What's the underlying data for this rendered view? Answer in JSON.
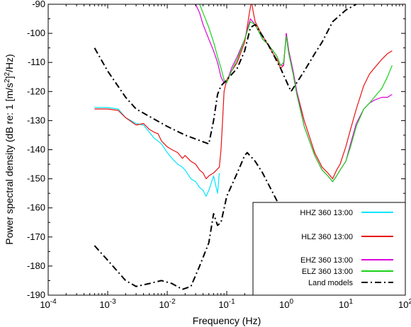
{
  "chart_data": {
    "type": "line",
    "title": "",
    "xlabel": "Frequency (Hz)",
    "ylabel_parts": {
      "prefix": "Power spectral density (dB re: 1 [m/s",
      "sup": "2",
      "mid": "]",
      "sup2": "2",
      "suffix": "/Hz)"
    },
    "xscale": "log",
    "xlim": [
      0.0001,
      100
    ],
    "ylim": [
      -190,
      -90
    ],
    "x_ticks": [
      {
        "value": 0.0001,
        "base": "10",
        "exp": "-4"
      },
      {
        "value": 0.001,
        "base": "10",
        "exp": "-3"
      },
      {
        "value": 0.01,
        "base": "10",
        "exp": "-2"
      },
      {
        "value": 0.1,
        "base": "10",
        "exp": "-1"
      },
      {
        "value": 1,
        "base": "10",
        "exp": "0"
      },
      {
        "value": 10,
        "base": "10",
        "exp": "1"
      },
      {
        "value": 100,
        "base": "10",
        "exp": "2"
      }
    ],
    "y_ticks": [
      {
        "value": -90,
        "label": "-90"
      },
      {
        "value": -100,
        "label": "-100"
      },
      {
        "value": -110,
        "label": "-110"
      },
      {
        "value": -120,
        "label": "-120"
      },
      {
        "value": -130,
        "label": "-130"
      },
      {
        "value": -140,
        "label": "-140"
      },
      {
        "value": -150,
        "label": "-150"
      },
      {
        "value": -160,
        "label": "-160"
      },
      {
        "value": -170,
        "label": "-170"
      },
      {
        "value": -180,
        "label": "-180"
      },
      {
        "value": -190,
        "label": "-190"
      }
    ],
    "grid": false,
    "legend_position": "bottom-right",
    "series": [
      {
        "name": "HHZ 360 13:00",
        "color": "#00e5ff",
        "style": "solid",
        "points": [
          [
            0.0006,
            -125.5
          ],
          [
            0.001,
            -125.5
          ],
          [
            0.0015,
            -126
          ],
          [
            0.002,
            -129
          ],
          [
            0.003,
            -131
          ],
          [
            0.004,
            -131.5
          ],
          [
            0.005,
            -134
          ],
          [
            0.006,
            -136
          ],
          [
            0.007,
            -137
          ],
          [
            0.008,
            -138
          ],
          [
            0.01,
            -141
          ],
          [
            0.012,
            -143
          ],
          [
            0.015,
            -145
          ],
          [
            0.018,
            -146
          ],
          [
            0.02,
            -147
          ],
          [
            0.025,
            -150
          ],
          [
            0.03,
            -151
          ],
          [
            0.035,
            -153
          ],
          [
            0.04,
            -154
          ],
          [
            0.045,
            -156
          ],
          [
            0.05,
            -154
          ],
          [
            0.06,
            -149
          ],
          [
            0.07,
            -155
          ],
          [
            0.075,
            -148
          ]
        ]
      },
      {
        "name": "HLZ 360 13:00",
        "color": "#e81010",
        "style": "solid",
        "points": [
          [
            0.0006,
            -126
          ],
          [
            0.001,
            -126
          ],
          [
            0.0015,
            -126.5
          ],
          [
            0.002,
            -129
          ],
          [
            0.003,
            -131.5
          ],
          [
            0.004,
            -131
          ],
          [
            0.005,
            -133
          ],
          [
            0.006,
            -134
          ],
          [
            0.007,
            -134.5
          ],
          [
            0.008,
            -137
          ],
          [
            0.01,
            -139
          ],
          [
            0.012,
            -140
          ],
          [
            0.015,
            -141
          ],
          [
            0.018,
            -143
          ],
          [
            0.02,
            -142
          ],
          [
            0.025,
            -144
          ],
          [
            0.03,
            -145
          ],
          [
            0.035,
            -147
          ],
          [
            0.04,
            -148
          ],
          [
            0.045,
            -150
          ],
          [
            0.05,
            -149
          ],
          [
            0.06,
            -148
          ],
          [
            0.075,
            -146
          ],
          [
            0.08,
            -140
          ],
          [
            0.085,
            -130
          ],
          [
            0.09,
            -120
          ],
          [
            0.1,
            -116
          ],
          [
            0.12,
            -113
          ],
          [
            0.15,
            -110
          ],
          [
            0.2,
            -103
          ],
          [
            0.22,
            -98
          ],
          [
            0.24,
            -93
          ],
          [
            0.26,
            -89
          ],
          [
            0.28,
            -93
          ],
          [
            0.3,
            -96
          ],
          [
            0.4,
            -101
          ],
          [
            0.5,
            -104
          ],
          [
            0.6,
            -107
          ],
          [
            0.7,
            -109
          ],
          [
            0.8,
            -112
          ],
          [
            0.9,
            -111
          ],
          [
            1.0,
            -100
          ],
          [
            1.1,
            -106
          ],
          [
            1.3,
            -113
          ],
          [
            1.5,
            -120
          ],
          [
            2,
            -130
          ],
          [
            3,
            -141
          ],
          [
            4,
            -146
          ],
          [
            5,
            -148
          ],
          [
            6,
            -150
          ],
          [
            7,
            -147
          ],
          [
            8,
            -145
          ],
          [
            10,
            -139
          ],
          [
            12,
            -133
          ],
          [
            15,
            -126
          ],
          [
            20,
            -118
          ],
          [
            25,
            -114
          ],
          [
            30,
            -112
          ],
          [
            40,
            -109
          ],
          [
            50,
            -107
          ],
          [
            60,
            -106
          ]
        ]
      },
      {
        "name": "EHZ 360 13:00",
        "color": "#dd00dd",
        "style": "solid",
        "points": [
          [
            0.03,
            -90
          ],
          [
            0.035,
            -93
          ],
          [
            0.04,
            -97
          ],
          [
            0.05,
            -102
          ],
          [
            0.06,
            -106
          ],
          [
            0.07,
            -110
          ],
          [
            0.08,
            -115
          ],
          [
            0.09,
            -117
          ],
          [
            0.1,
            -117
          ],
          [
            0.12,
            -112
          ],
          [
            0.15,
            -108
          ],
          [
            0.2,
            -102
          ],
          [
            0.25,
            -95
          ],
          [
            0.3,
            -97
          ],
          [
            0.4,
            -102
          ],
          [
            0.5,
            -104
          ],
          [
            0.6,
            -106
          ],
          [
            0.7,
            -108
          ],
          [
            0.8,
            -111
          ],
          [
            0.9,
            -111
          ],
          [
            1.0,
            -100
          ],
          [
            1.1,
            -106
          ],
          [
            1.3,
            -113
          ],
          [
            1.5,
            -120
          ],
          [
            2,
            -132
          ],
          [
            3,
            -142
          ],
          [
            4,
            -147
          ],
          [
            5,
            -149
          ],
          [
            6,
            -151
          ],
          [
            7,
            -149
          ],
          [
            8,
            -147
          ],
          [
            10,
            -144
          ],
          [
            12,
            -138
          ],
          [
            15,
            -131
          ],
          [
            20,
            -126
          ],
          [
            25,
            -124
          ],
          [
            30,
            -123
          ],
          [
            40,
            -122
          ],
          [
            50,
            -122
          ],
          [
            60,
            -121
          ]
        ]
      },
      {
        "name": "ELZ 360 13:00",
        "color": "#19d219",
        "style": "solid",
        "points": [
          [
            0.035,
            -90
          ],
          [
            0.04,
            -93
          ],
          [
            0.05,
            -98
          ],
          [
            0.06,
            -103
          ],
          [
            0.07,
            -108
          ],
          [
            0.08,
            -112
          ],
          [
            0.09,
            -116
          ],
          [
            0.1,
            -117
          ],
          [
            0.12,
            -113
          ],
          [
            0.15,
            -109
          ],
          [
            0.2,
            -102
          ],
          [
            0.25,
            -96
          ],
          [
            0.3,
            -97
          ],
          [
            0.4,
            -102
          ],
          [
            0.5,
            -104
          ],
          [
            0.6,
            -106
          ],
          [
            0.7,
            -108
          ],
          [
            0.8,
            -111
          ],
          [
            0.9,
            -110
          ],
          [
            1.0,
            -101
          ],
          [
            1.1,
            -107
          ],
          [
            1.3,
            -114
          ],
          [
            1.5,
            -121
          ],
          [
            2,
            -132
          ],
          [
            3,
            -142
          ],
          [
            4,
            -147
          ],
          [
            5,
            -149
          ],
          [
            6,
            -151
          ],
          [
            7,
            -149
          ],
          [
            8,
            -147
          ],
          [
            10,
            -144
          ],
          [
            12,
            -139
          ],
          [
            15,
            -132
          ],
          [
            20,
            -126
          ],
          [
            25,
            -124
          ],
          [
            30,
            -122
          ],
          [
            40,
            -119
          ],
          [
            50,
            -115
          ],
          [
            60,
            -111
          ]
        ]
      },
      {
        "name": "Land models",
        "color": "#000000",
        "style": "dashdot",
        "points": [
          [
            0.0006,
            -105
          ],
          [
            0.001,
            -113
          ],
          [
            0.002,
            -122
          ],
          [
            0.003,
            -126
          ],
          [
            0.01,
            -132
          ],
          [
            0.02,
            -135
          ],
          [
            0.05,
            -138
          ],
          [
            0.06,
            -130
          ],
          [
            0.07,
            -121
          ],
          [
            0.08,
            -118
          ],
          [
            0.1,
            -116
          ],
          [
            0.15,
            -112
          ],
          [
            0.2,
            -106
          ],
          [
            0.25,
            -98
          ],
          [
            0.3,
            -97
          ],
          [
            0.5,
            -104
          ],
          [
            0.8,
            -112
          ],
          [
            1.2,
            -120
          ],
          [
            2,
            -113
          ],
          [
            3,
            -107
          ],
          [
            4,
            -103
          ],
          [
            6,
            -96
          ],
          [
            10,
            -92
          ],
          [
            15,
            -90
          ]
        ]
      },
      {
        "name": "",
        "color": "#000000",
        "style": "dashdot",
        "points": [
          [
            0.0006,
            -173
          ],
          [
            0.001,
            -178
          ],
          [
            0.002,
            -185
          ],
          [
            0.003,
            -187
          ],
          [
            0.005,
            -186
          ],
          [
            0.008,
            -185
          ],
          [
            0.012,
            -186
          ],
          [
            0.018,
            -188
          ],
          [
            0.025,
            -187
          ],
          [
            0.035,
            -180
          ],
          [
            0.05,
            -172
          ],
          [
            0.06,
            -162
          ],
          [
            0.07,
            -166
          ],
          [
            0.08,
            -165
          ],
          [
            0.1,
            -156
          ],
          [
            0.15,
            -148
          ],
          [
            0.2,
            -142
          ],
          [
            0.22,
            -141
          ],
          [
            0.3,
            -144
          ],
          [
            0.4,
            -148
          ],
          [
            0.6,
            -155
          ],
          [
            0.8,
            -160
          ],
          [
            1.0,
            -165
          ]
        ]
      }
    ]
  }
}
